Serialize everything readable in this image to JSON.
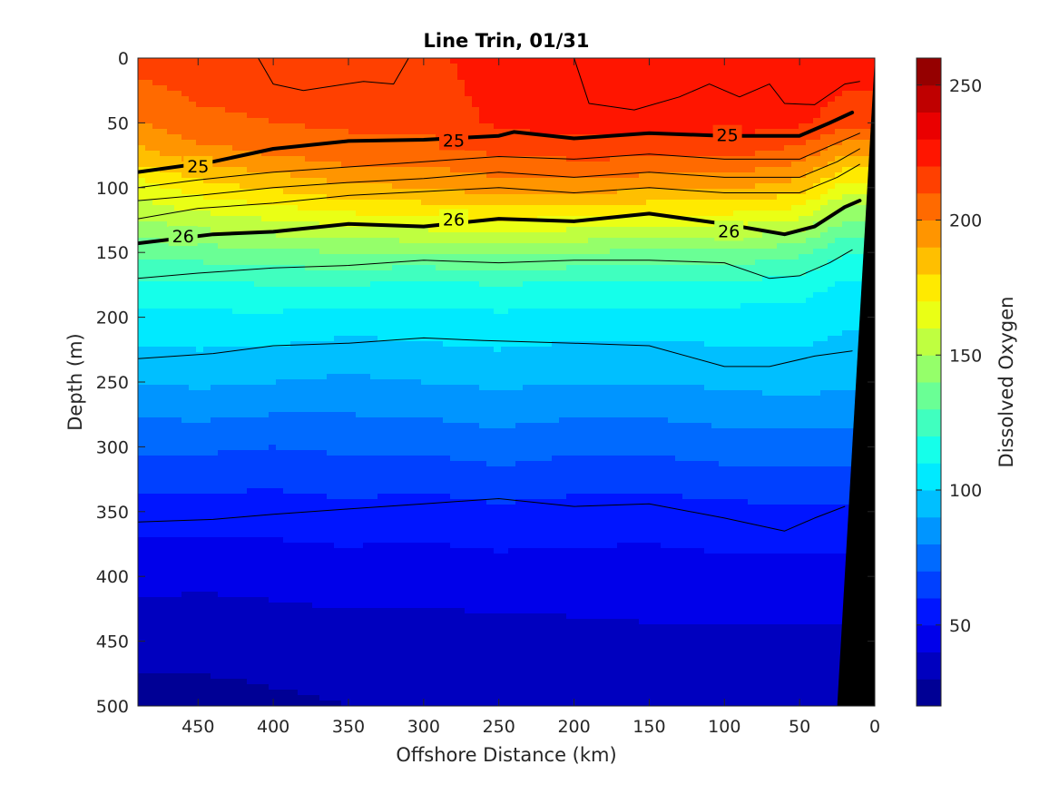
{
  "chart_data": {
    "type": "filled-contour",
    "title": "Line Trin, 01/31",
    "xlabel": "Offshore Distance (km)",
    "ylabel": "Depth (m)",
    "x_ticks": [
      "450",
      "400",
      "350",
      "300",
      "250",
      "200",
      "150",
      "100",
      "50",
      "0"
    ],
    "y_ticks": [
      "0",
      "50",
      "100",
      "150",
      "200",
      "250",
      "300",
      "350",
      "400",
      "450",
      "500"
    ],
    "xlim": [
      490,
      0
    ],
    "ylim": [
      0,
      500
    ],
    "x_reversed": true,
    "y_reversed": true,
    "colorbar": {
      "label": "Dissolved Oxygen",
      "ticks": [
        "50",
        "100",
        "150",
        "200",
        "250"
      ],
      "tick_values": [
        50,
        100,
        150,
        200,
        250
      ],
      "range": [
        20,
        260
      ],
      "colormap": "jet",
      "level_step": 10
    },
    "oxygen_at_depth": {
      "x": [
        490,
        450,
        400,
        350,
        300,
        250,
        200,
        150,
        100,
        50,
        20
      ],
      "depths": [
        0,
        50,
        75,
        100,
        125,
        150,
        175,
        200,
        250,
        300,
        350,
        400,
        450,
        500
      ],
      "rows": [
        [
          215,
          215,
          215,
          215,
          215,
          228,
          228,
          228,
          230,
          228,
          225
        ],
        [
          200,
          208,
          210,
          212,
          212,
          222,
          225,
          225,
          225,
          222,
          215
        ],
        [
          185,
          195,
          200,
          205,
          205,
          210,
          212,
          212,
          212,
          205,
          190
        ],
        [
          165,
          175,
          182,
          188,
          190,
          195,
          195,
          192,
          192,
          185,
          165
        ],
        [
          150,
          155,
          160,
          165,
          168,
          170,
          168,
          165,
          165,
          160,
          140
        ],
        [
          132,
          135,
          138,
          140,
          140,
          143,
          140,
          138,
          138,
          133,
          120
        ],
        [
          118,
          118,
          120,
          120,
          118,
          120,
          118,
          118,
          118,
          115,
          108
        ],
        [
          108,
          108,
          108,
          105,
          106,
          108,
          106,
          106,
          106,
          106,
          102
        ],
        [
          90,
          92,
          90,
          88,
          90,
          92,
          90,
          90,
          92,
          94,
          92
        ],
        [
          72,
          72,
          70,
          72,
          72,
          75,
          72,
          72,
          75,
          75,
          75
        ],
        [
          55,
          55,
          55,
          57,
          55,
          58,
          56,
          55,
          57,
          58,
          58
        ],
        [
          43,
          42,
          43,
          44,
          44,
          45,
          45,
          45,
          46,
          46,
          45
        ],
        [
          34,
          34,
          35,
          36,
          36,
          36,
          37,
          38,
          38,
          38,
          38
        ],
        [
          26,
          26,
          28,
          30,
          32,
          33,
          35,
          35,
          35,
          34,
          34
        ]
      ]
    },
    "density_contours": [
      {
        "level": "25",
        "bold": true,
        "x": [
          490,
          440,
          400,
          350,
          300,
          250,
          240,
          200,
          150,
          100,
          50,
          30,
          15
        ],
        "depth": [
          88,
          80,
          70,
          64,
          63,
          60,
          57,
          62,
          58,
          60,
          60,
          50,
          42
        ]
      },
      {
        "level": "26",
        "bold": true,
        "x": [
          490,
          440,
          400,
          350,
          300,
          250,
          200,
          150,
          100,
          60,
          40,
          20,
          10
        ],
        "depth": [
          143,
          136,
          134,
          128,
          130,
          124,
          126,
          120,
          128,
          136,
          130,
          115,
          110
        ]
      },
      {
        "level": "",
        "bold": false,
        "x": [
          490,
          450,
          400,
          350,
          300,
          250,
          200,
          150,
          100,
          50,
          30,
          10
        ],
        "depth": [
          100,
          94,
          88,
          84,
          80,
          76,
          78,
          74,
          78,
          78,
          68,
          58
        ]
      },
      {
        "level": "",
        "bold": false,
        "x": [
          490,
          450,
          400,
          350,
          300,
          250,
          200,
          150,
          100,
          50,
          25,
          10
        ],
        "depth": [
          110,
          106,
          100,
          96,
          93,
          88,
          92,
          88,
          92,
          92,
          80,
          70
        ]
      },
      {
        "level": "",
        "bold": false,
        "x": [
          490,
          450,
          400,
          350,
          300,
          250,
          200,
          150,
          100,
          50,
          25,
          10
        ],
        "depth": [
          124,
          116,
          112,
          106,
          103,
          100,
          104,
          100,
          104,
          104,
          92,
          82
        ]
      },
      {
        "level": "",
        "bold": false,
        "x": [
          490,
          450,
          400,
          350,
          300,
          250,
          200,
          150,
          100,
          70,
          50,
          30,
          15
        ],
        "depth": [
          170,
          166,
          162,
          160,
          156,
          158,
          156,
          156,
          158,
          170,
          168,
          158,
          148
        ]
      },
      {
        "level": "",
        "bold": false,
        "x": [
          490,
          440,
          400,
          350,
          300,
          260,
          200,
          150,
          100,
          70,
          40,
          15
        ],
        "depth": [
          232,
          228,
          222,
          220,
          216,
          218,
          220,
          222,
          238,
          238,
          230,
          226
        ]
      },
      {
        "level": "",
        "bold": false,
        "x": [
          490,
          440,
          400,
          350,
          300,
          250,
          200,
          150,
          100,
          60,
          40,
          20
        ],
        "depth": [
          358,
          356,
          352,
          348,
          344,
          340,
          346,
          344,
          355,
          365,
          355,
          346
        ]
      },
      {
        "level": "",
        "bold": false,
        "x": [
          410,
          400,
          380,
          340,
          320,
          310
        ],
        "depth": [
          0,
          20,
          25,
          18,
          20,
          0
        ]
      },
      {
        "level": "",
        "bold": false,
        "x": [
          200,
          190,
          160,
          130,
          110,
          90,
          70,
          60,
          40,
          20,
          10
        ],
        "depth": [
          0,
          35,
          40,
          30,
          20,
          30,
          20,
          35,
          36,
          20,
          18
        ]
      }
    ],
    "contour_labels": [
      {
        "text": "25",
        "x": 450,
        "depth": 84
      },
      {
        "text": "25",
        "x": 280,
        "depth": 64
      },
      {
        "text": "25",
        "x": 98,
        "depth": 60
      },
      {
        "text": "26",
        "x": 460,
        "depth": 138
      },
      {
        "text": "26",
        "x": 280,
        "depth": 125
      },
      {
        "text": "26",
        "x": 97,
        "depth": 134
      }
    ],
    "land_mask": {
      "x": [
        25,
        0,
        0
      ],
      "depth": [
        500,
        0,
        500
      ]
    }
  }
}
